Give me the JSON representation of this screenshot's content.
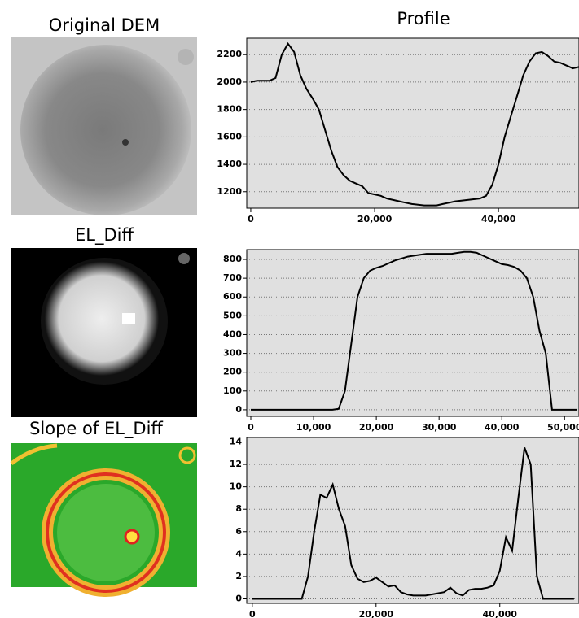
{
  "figure": {
    "column_title": "Profile",
    "panels": [
      "Original DEM",
      "EL_Diff",
      "Slope of EL_Diff"
    ]
  },
  "chart_data": [
    {
      "type": "line",
      "grid": true,
      "x": [
        0,
        1000,
        2000,
        3000,
        4000,
        5000,
        6000,
        7000,
        8000,
        9000,
        10000,
        11000,
        12000,
        13000,
        14000,
        15000,
        16000,
        17000,
        18000,
        19000,
        20000,
        21000,
        22000,
        23000,
        24000,
        25000,
        26000,
        27000,
        28000,
        29000,
        30000,
        31000,
        32000,
        33000,
        34000,
        35000,
        36000,
        37000,
        38000,
        39000,
        40000,
        41000,
        42000,
        43000,
        44000,
        45000,
        46000,
        47000,
        48000,
        49000,
        50000,
        51000,
        52000,
        53000
      ],
      "series": [
        {
          "color": "#000000",
          "values": [
            2000,
            2010,
            2010,
            2010,
            2030,
            2200,
            2280,
            2220,
            2050,
            1950,
            1880,
            1800,
            1650,
            1500,
            1380,
            1320,
            1280,
            1260,
            1240,
            1190,
            1180,
            1170,
            1150,
            1140,
            1130,
            1120,
            1110,
            1105,
            1100,
            1100,
            1100,
            1110,
            1120,
            1130,
            1135,
            1140,
            1145,
            1150,
            1170,
            1250,
            1400,
            1600,
            1750,
            1900,
            2050,
            2150,
            2210,
            2220,
            2190,
            2150,
            2140,
            2120,
            2100,
            2110
          ]
        }
      ],
      "xlim": [
        -650,
        53000
      ],
      "ylim": [
        1080,
        2320
      ],
      "xticks": [
        0,
        {
          "value": 20000,
          "label": "20,000"
        },
        {
          "value": 40000,
          "label": "40,000"
        }
      ],
      "yticks": [
        1200,
        1400,
        1600,
        1800,
        2000,
        2200
      ]
    },
    {
      "type": "line",
      "grid": true,
      "x": [
        0,
        1000,
        2000,
        3000,
        4000,
        5000,
        6000,
        7000,
        8000,
        9000,
        10000,
        11000,
        12000,
        13000,
        14000,
        15000,
        16000,
        17000,
        18000,
        19000,
        20000,
        21000,
        22000,
        23000,
        24000,
        25000,
        26000,
        27000,
        28000,
        29000,
        30000,
        31000,
        32000,
        33000,
        34000,
        35000,
        36000,
        37000,
        38000,
        39000,
        40000,
        41000,
        42000,
        43000,
        44000,
        45000,
        46000,
        47000,
        48000,
        49000,
        50000,
        51000,
        52000
      ],
      "series": [
        {
          "color": "#000000",
          "values": [
            0,
            0,
            0,
            0,
            0,
            0,
            0,
            0,
            0,
            0,
            0,
            0,
            0,
            0,
            5,
            100,
            350,
            600,
            700,
            740,
            755,
            765,
            780,
            795,
            805,
            815,
            820,
            825,
            830,
            830,
            830,
            830,
            830,
            835,
            840,
            840,
            835,
            820,
            805,
            790,
            775,
            770,
            760,
            740,
            700,
            600,
            420,
            300,
            0,
            0,
            0,
            0,
            0
          ]
        }
      ],
      "xlim": [
        -650,
        52300
      ],
      "ylim": [
        -35,
        852
      ],
      "xticks": [
        0,
        {
          "value": 10000,
          "label": "10,000"
        },
        {
          "value": 20000,
          "label": "20,000"
        },
        {
          "value": 30000,
          "label": "30,000"
        },
        {
          "value": 40000,
          "label": "40,000"
        },
        {
          "value": 50000,
          "label": "50,000"
        }
      ],
      "yticks": [
        0,
        100,
        200,
        300,
        400,
        500,
        600,
        700,
        800
      ]
    },
    {
      "type": "line",
      "grid": true,
      "x": [
        0,
        1000,
        2000,
        3000,
        4000,
        5000,
        6000,
        7000,
        8000,
        9000,
        10000,
        11000,
        12000,
        13000,
        14000,
        15000,
        16000,
        17000,
        18000,
        19000,
        20000,
        21000,
        22000,
        23000,
        24000,
        25000,
        26000,
        27000,
        28000,
        29000,
        30000,
        31000,
        32000,
        33000,
        34000,
        35000,
        36000,
        37000,
        38000,
        39000,
        40000,
        41000,
        42000,
        43000,
        44000,
        45000,
        46000,
        47000,
        48000,
        49000,
        50000,
        51000,
        52000
      ],
      "series": [
        {
          "color": "#000000",
          "values": [
            0,
            0,
            0,
            0,
            0,
            0,
            0,
            0,
            0,
            2,
            6,
            9.3,
            9,
            10.2,
            8,
            6.5,
            3,
            1.8,
            1.5,
            1.6,
            1.9,
            1.5,
            1.1,
            1.2,
            0.6,
            0.4,
            0.3,
            0.3,
            0.3,
            0.4,
            0.5,
            0.6,
            1,
            0.5,
            0.3,
            0.8,
            0.9,
            0.9,
            1,
            1.2,
            2.5,
            5.5,
            4.3,
            9,
            13.5,
            12,
            2,
            0,
            0,
            0,
            0,
            0,
            0
          ]
        }
      ],
      "xlim": [
        -900,
        52800
      ],
      "ylim": [
        -0.4,
        14.4
      ],
      "xticks": [
        0,
        {
          "value": 20000,
          "label": "20,000"
        },
        {
          "value": 40000,
          "label": "40,000"
        }
      ],
      "yticks": [
        0,
        2,
        4,
        6,
        8,
        10,
        12,
        14
      ]
    }
  ]
}
